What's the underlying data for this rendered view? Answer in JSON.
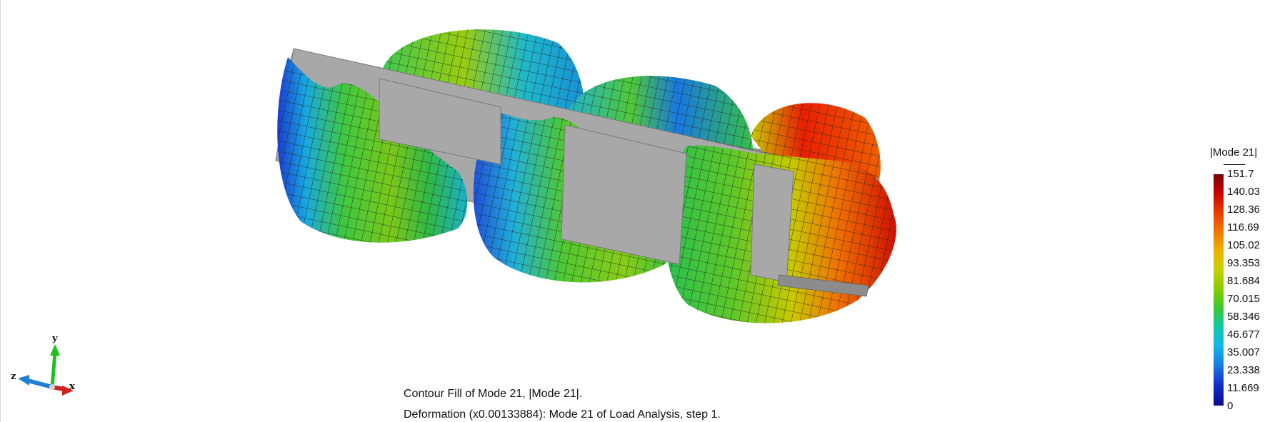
{
  "caption": {
    "line1": "Contour Fill of Mode 21, |Mode 21|.",
    "line2": "Deformation (x0.00133884): Mode 21 of Load Analysis, step 1."
  },
  "legend": {
    "title": "|Mode 21|",
    "labels": [
      "151.7",
      "140.03",
      "128.36",
      "116.69",
      "105.02",
      "93.353",
      "81.684",
      "70.015",
      "58.346",
      "46.677",
      "35.007",
      "23.338",
      "11.669",
      "0"
    ]
  },
  "axes": {
    "y": "y",
    "z": "z",
    "x": "x",
    "colors": {
      "x": "#d02020",
      "y": "#20c020",
      "z": "#2080d0"
    }
  },
  "colors": {
    "frame": "#a8a8a8",
    "frame_dark": "#8c8c8c"
  }
}
